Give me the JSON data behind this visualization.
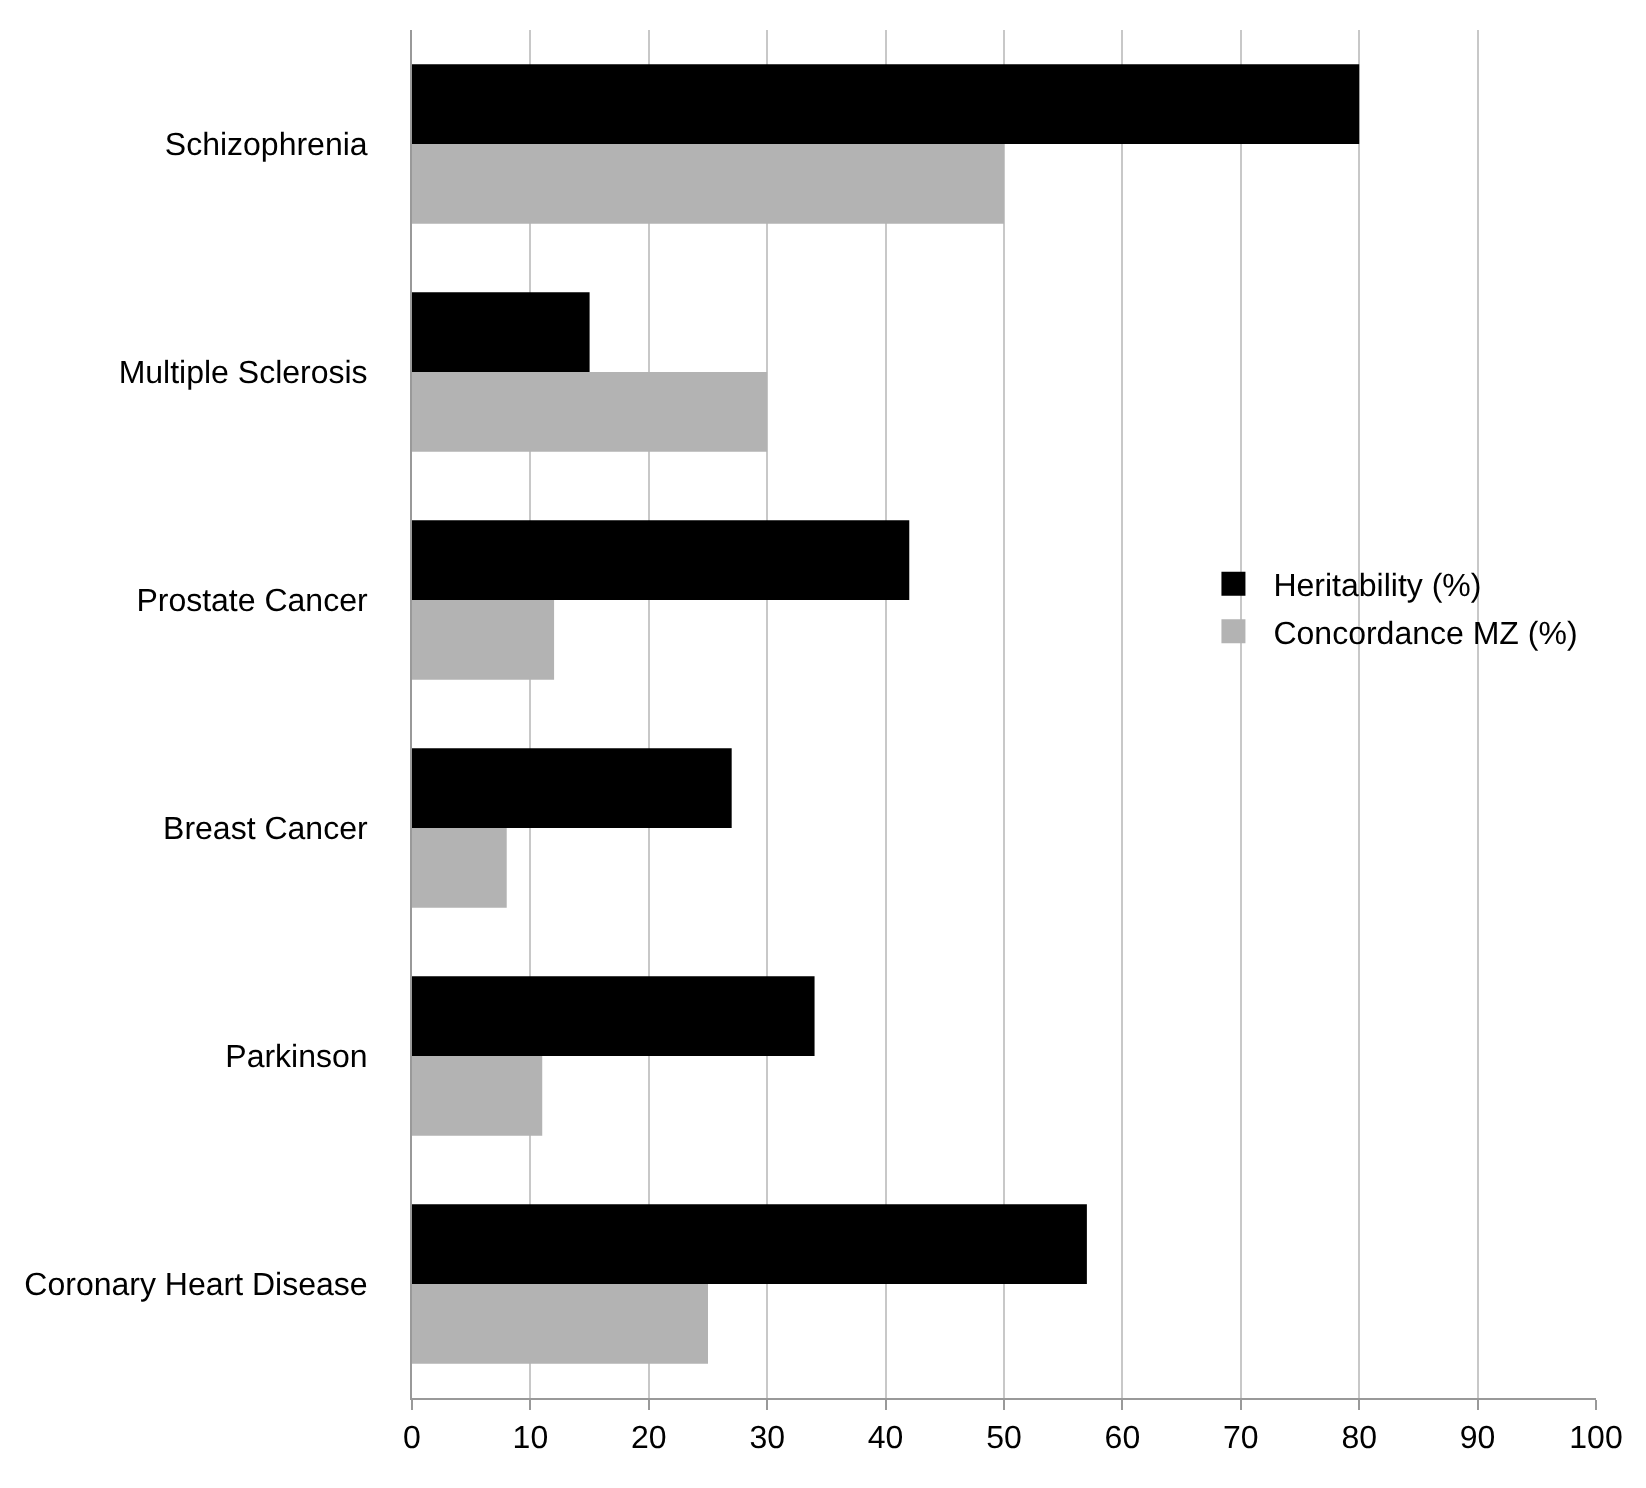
{
  "chart_data": {
    "type": "bar",
    "orientation": "horizontal",
    "categories": [
      "Schizophrenia",
      "Multiple Sclerosis",
      "Prostate Cancer",
      "Breast Cancer",
      "Parkinson",
      "Coronary Heart Disease"
    ],
    "series": [
      {
        "name": "Heritability (%)",
        "color": "#000000",
        "values": [
          80,
          15,
          42,
          27,
          34,
          57
        ]
      },
      {
        "name": "Concordance MZ (%)",
        "color": "#b3b3b3",
        "values": [
          50,
          30,
          12,
          8,
          11,
          25
        ]
      }
    ],
    "xlim": [
      0,
      100
    ],
    "xticks": [
      0,
      10,
      20,
      30,
      40,
      50,
      60,
      70,
      80,
      90,
      100
    ],
    "grid": "x",
    "legend": "right"
  }
}
